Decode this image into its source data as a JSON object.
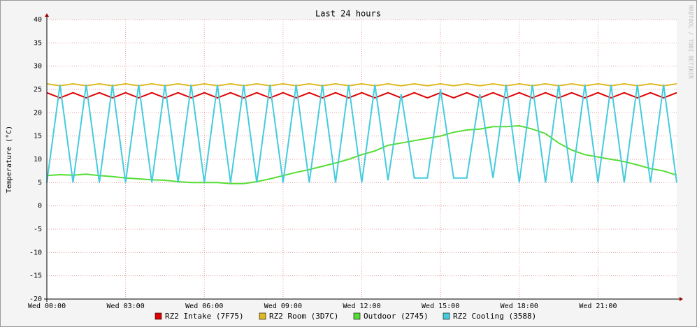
{
  "chart_data": {
    "type": "line",
    "title": "Last 24 hours",
    "y_label": "Temperature (°C)",
    "side_label": "RRDTOOL / TOBI OETIKER",
    "xlim": [
      0,
      24
    ],
    "ylim": [
      -20,
      40
    ],
    "yticks": [
      -20,
      -15,
      -10,
      -5,
      0,
      5,
      10,
      15,
      20,
      25,
      30,
      35,
      40
    ],
    "xticks": [
      {
        "value": 0,
        "label": "Wed 00:00"
      },
      {
        "value": 3,
        "label": "Wed 03:00"
      },
      {
        "value": 6,
        "label": "Wed 06:00"
      },
      {
        "value": 9,
        "label": "Wed 09:00"
      },
      {
        "value": 12,
        "label": "Wed 12:00"
      },
      {
        "value": 15,
        "label": "Wed 15:00"
      },
      {
        "value": 18,
        "label": "Wed 18:00"
      },
      {
        "value": 21,
        "label": "Wed 21:00"
      }
    ],
    "grid": true,
    "x": [
      0,
      0.5,
      1,
      1.5,
      2,
      2.5,
      3,
      3.5,
      4,
      4.5,
      5,
      5.5,
      6,
      6.5,
      7,
      7.5,
      8,
      8.5,
      9,
      9.5,
      10,
      10.5,
      11,
      11.5,
      12,
      12.5,
      13,
      13.5,
      14,
      14.5,
      15,
      15.5,
      16,
      16.5,
      17,
      17.5,
      18,
      18.5,
      19,
      19.5,
      20,
      20.5,
      21,
      21.5,
      22,
      22.5,
      23,
      23.5,
      24
    ],
    "series": [
      {
        "name": "RZ2 Intake (7F75)",
        "color": "#e00000",
        "values": [
          24.3,
          23.2,
          24.3,
          23.2,
          24.3,
          23.2,
          24.3,
          23.2,
          24.3,
          23.2,
          24.3,
          23.2,
          24.3,
          23.2,
          24.3,
          23.2,
          24.3,
          23.2,
          24.3,
          23.2,
          24.3,
          23.2,
          24.3,
          23.2,
          24.3,
          23.2,
          24.3,
          23.2,
          24.3,
          23.2,
          24.3,
          23.2,
          24.3,
          23.2,
          24.3,
          23.2,
          24.3,
          23.2,
          24.3,
          23.2,
          24.3,
          23.2,
          24.3,
          23.2,
          24.3,
          23.2,
          24.3,
          23.2,
          24.3
        ]
      },
      {
        "name": "RZ2 Room (3D7C)",
        "color": "#e0b820",
        "values": [
          26.2,
          25.8,
          26.2,
          25.8,
          26.2,
          25.8,
          26.2,
          25.8,
          26.2,
          25.8,
          26.2,
          25.8,
          26.2,
          25.8,
          26.2,
          25.8,
          26.2,
          25.8,
          26.2,
          25.8,
          26.2,
          25.8,
          26.2,
          25.8,
          26.2,
          25.8,
          26.2,
          25.8,
          26.2,
          25.8,
          26.2,
          25.8,
          26.2,
          25.8,
          26.2,
          25.8,
          26.2,
          25.8,
          26.2,
          25.8,
          26.2,
          25.8,
          26.2,
          25.8,
          26.2,
          25.8,
          26.2,
          25.8,
          26.2
        ]
      },
      {
        "name": "Outdoor (2745)",
        "color": "#55dd33",
        "values": [
          6.5,
          6.7,
          6.6,
          6.8,
          6.5,
          6.3,
          6,
          5.8,
          5.6,
          5.5,
          5.2,
          5,
          5,
          5,
          4.8,
          4.8,
          5.2,
          5.8,
          6.5,
          7.2,
          7.8,
          8.5,
          9.2,
          10,
          11,
          11.8,
          13,
          13.5,
          14,
          14.5,
          15,
          15.8,
          16.3,
          16.5,
          17,
          17,
          17.2,
          16.5,
          15.5,
          13.5,
          12,
          11,
          10.5,
          10,
          9.5,
          8.8,
          8,
          7.5,
          6.6
        ]
      },
      {
        "name": "RZ2 Cooling (3588)",
        "color": "#44ccdd",
        "values": [
          5,
          26,
          5,
          26,
          5,
          26,
          5,
          26,
          5,
          26,
          5,
          26,
          5,
          26,
          5,
          26,
          5,
          26,
          5,
          26,
          5,
          26,
          5,
          26,
          5,
          26,
          5.5,
          24,
          6,
          6,
          25,
          6,
          6,
          24,
          6,
          26,
          5,
          26,
          5,
          26,
          5,
          26,
          5,
          26,
          5,
          26,
          5,
          26,
          5
        ]
      }
    ]
  }
}
